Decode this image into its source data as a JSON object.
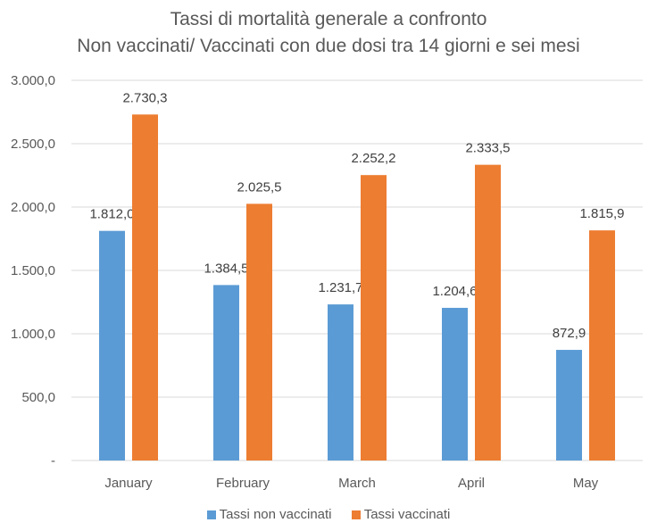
{
  "chart_data": {
    "type": "bar",
    "title_lines": [
      "Tassi di mortalità generale a confronto",
      "Non vaccinati/ Vaccinati con due dosi tra 14 giorni e sei mesi"
    ],
    "categories": [
      "January",
      "February",
      "March",
      "April",
      "May"
    ],
    "series": [
      {
        "name": "Tassi non vaccinati",
        "values": [
          1812.0,
          1384.5,
          1231.7,
          1204.6,
          872.9
        ],
        "labels": [
          "1.812,0",
          "1.384,5",
          "1.231,7",
          "1.204,6",
          "872,9"
        ],
        "color": "#5b9bd5"
      },
      {
        "name": "Tassi vaccinati",
        "values": [
          2730.3,
          2025.5,
          2252.2,
          2333.5,
          1815.9
        ],
        "labels": [
          "2.730,3",
          "2.025,5",
          "2.252,2",
          "2.333,5",
          "1.815,9"
        ],
        "color": "#ed7d31"
      }
    ],
    "yticks": [
      0,
      500,
      1000,
      1500,
      2000,
      2500,
      3000
    ],
    "ytick_labels": [
      "-",
      "500,0",
      "1.000,0",
      "1.500,0",
      "2.000,0",
      "2.500,0",
      "3.000,0"
    ],
    "ylim": [
      0,
      3000
    ],
    "grid": true,
    "legend_position": "bottom"
  }
}
